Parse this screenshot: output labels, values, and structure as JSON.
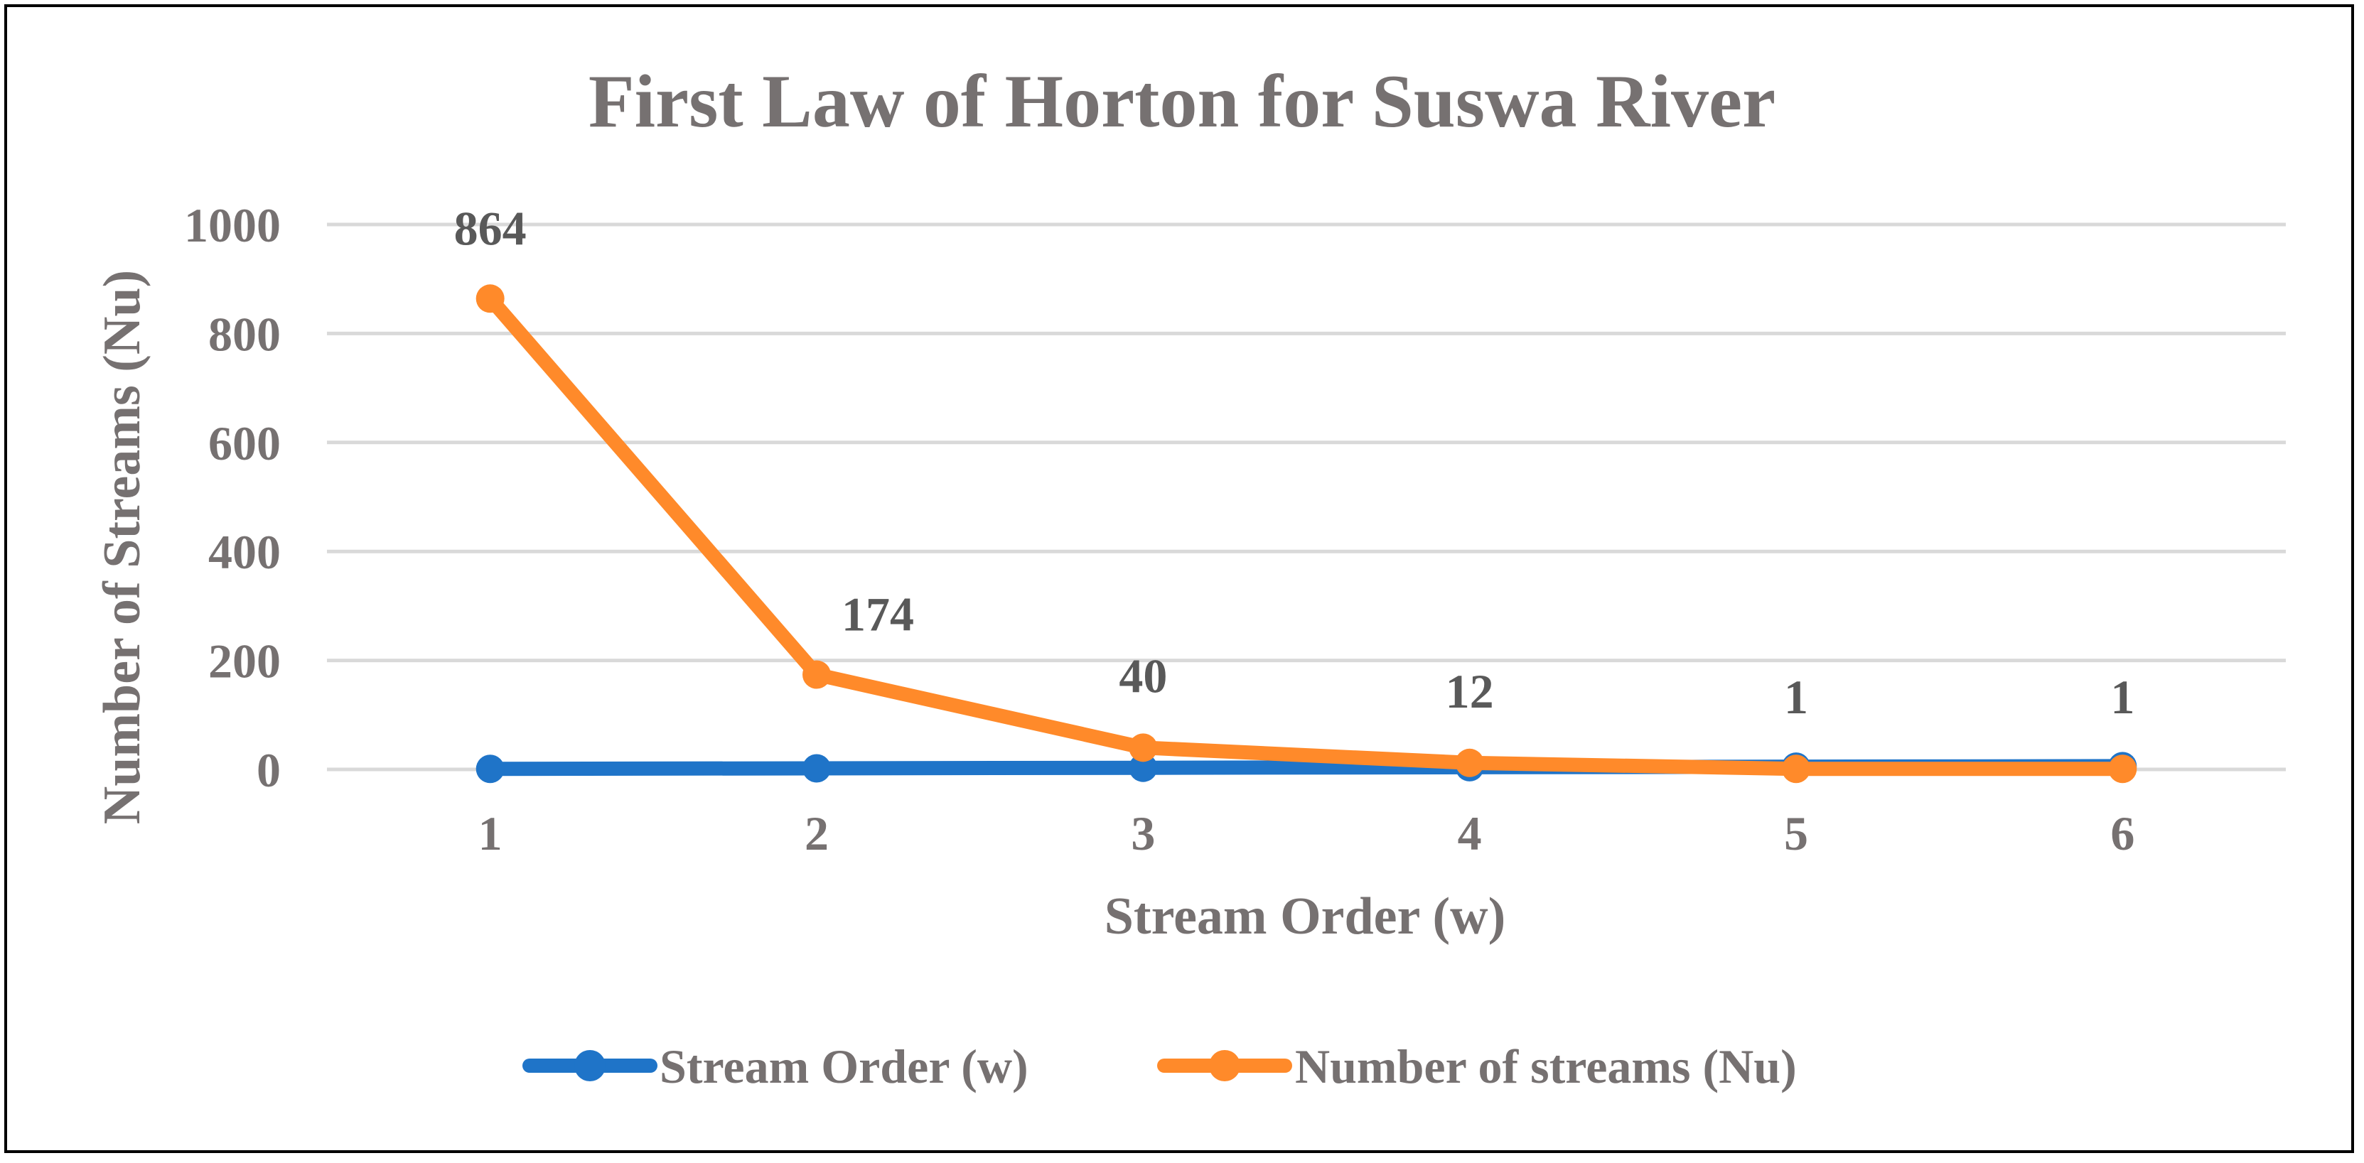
{
  "chart_data": {
    "type": "line",
    "title": "First Law of Horton for Suswa River",
    "xlabel": "Stream Order (w)",
    "ylabel": "Number of Streams (Nu)",
    "categories": [
      "1",
      "2",
      "3",
      "4",
      "5",
      "6"
    ],
    "ylim": [
      0,
      1000
    ],
    "yticks": [
      "0",
      "200",
      "400",
      "600",
      "800",
      "1000"
    ],
    "grid": true,
    "legend_position": "bottom",
    "series": [
      {
        "name": "Stream Order (w)",
        "values": [
          1,
          2,
          3,
          4,
          5,
          6
        ],
        "color": "#1F74C8",
        "data_labels": false
      },
      {
        "name": "Number of streams (Nu)",
        "values": [
          864,
          174,
          40,
          12,
          1,
          1
        ],
        "color": "#FF8A2A",
        "data_labels": true
      }
    ]
  }
}
